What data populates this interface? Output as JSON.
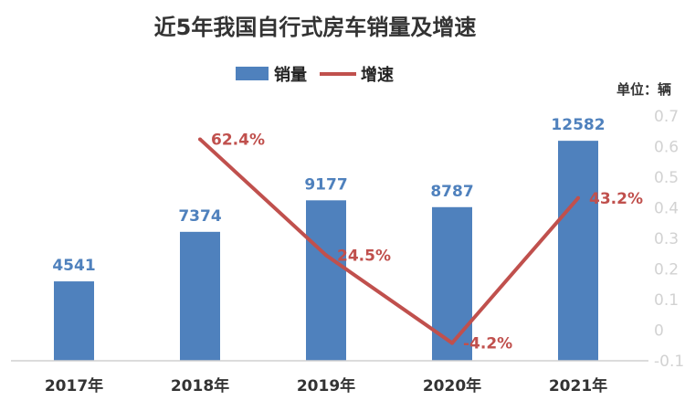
{
  "chart_data": {
    "type": "bar",
    "title": "近5年我国自行式房车销量及增速",
    "unit_label": "单位：辆",
    "categories": [
      "2017年",
      "2018年",
      "2019年",
      "2020年",
      "2021年"
    ],
    "series": [
      {
        "name": "销量",
        "type": "bar",
        "color": "#4f81bd",
        "values": [
          4541,
          7374,
          9177,
          8787,
          12582
        ],
        "labels": [
          "4541",
          "7374",
          "9177",
          "8787",
          "12582"
        ]
      },
      {
        "name": "增速",
        "type": "line",
        "color": "#c0504d",
        "values": [
          null,
          0.624,
          0.245,
          -0.042,
          0.432
        ],
        "labels": [
          "",
          "62.4%",
          "24.5%",
          "-4.2%",
          "43.2%"
        ]
      }
    ],
    "ylim": [
      0,
      14000
    ],
    "y2lim": [
      -0.1,
      0.7
    ],
    "y2_ticks": [
      "0.7",
      "0.6",
      "0.5",
      "0.4",
      "0.3",
      "0.2",
      "0.1",
      "0",
      "-0.1"
    ],
    "legend_position": "top-center",
    "grid": false
  }
}
